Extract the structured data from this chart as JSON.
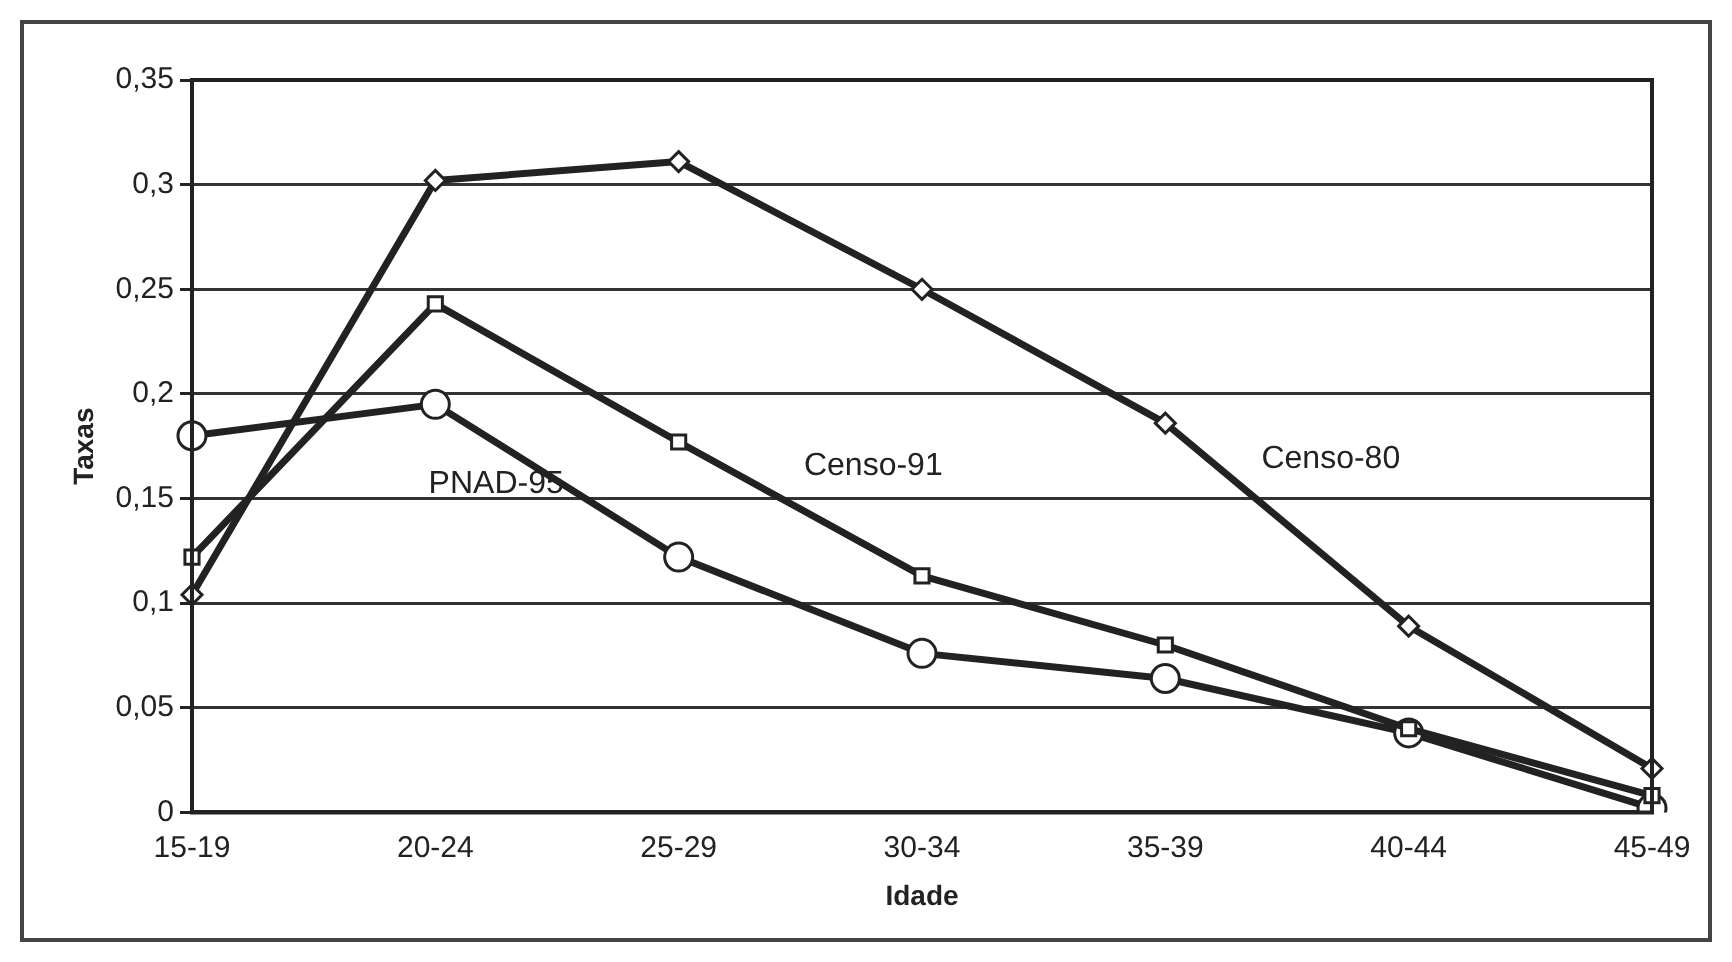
{
  "chart_data": {
    "type": "line",
    "xlabel": "Idade",
    "ylabel": "Taxas",
    "categories": [
      "15-19",
      "20-24",
      "25-29",
      "30-34",
      "35-39",
      "40-44",
      "45-49"
    ],
    "series": [
      {
        "name": "Censo-80",
        "color": "#222222",
        "marker": "diamond",
        "values": [
          0.104,
          0.302,
          0.311,
          0.25,
          0.186,
          0.089,
          0.021
        ]
      },
      {
        "name": "Censo-91",
        "color": "#222222",
        "marker": "square",
        "values": [
          0.122,
          0.243,
          0.177,
          0.113,
          0.08,
          0.04,
          0.008
        ]
      },
      {
        "name": "PNAD-95",
        "color": "#222222",
        "marker": "circle",
        "values": [
          0.18,
          0.195,
          0.122,
          0.076,
          0.064,
          0.038,
          0.002
        ]
      }
    ],
    "ylim": [
      0,
      0.35
    ],
    "yticks": [
      {
        "value": 0,
        "label": "0"
      },
      {
        "value": 0.05,
        "label": "0,05"
      },
      {
        "value": 0.1,
        "label": "0,1"
      },
      {
        "value": 0.15,
        "label": "0,15"
      },
      {
        "value": 0.2,
        "label": "0,2"
      },
      {
        "value": 0.25,
        "label": "0,25"
      },
      {
        "value": 0.3,
        "label": "0,3"
      },
      {
        "value": 0.35,
        "label": "0,35"
      }
    ],
    "grid": "y",
    "legend": false,
    "line_style": "solid"
  }
}
